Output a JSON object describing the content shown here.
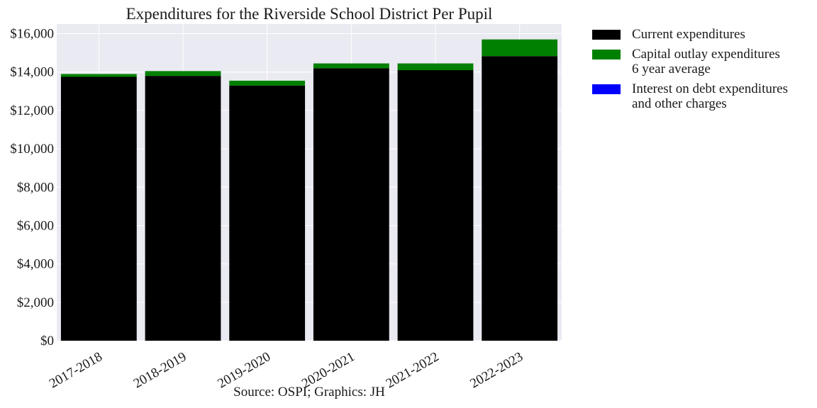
{
  "chart_data": {
    "type": "bar",
    "stacked": true,
    "title": "Expenditures for the Riverside School District Per Pupil",
    "xlabel": "Source: OSPI; Graphics: JH",
    "ylabel": "",
    "categories": [
      "2017-2018",
      "2018-2019",
      "2019-2020",
      "2020-2021",
      "2021-2022",
      "2022-2023"
    ],
    "series": [
      {
        "name": "Current expenditures",
        "color": "#000000",
        "values": [
          13750,
          13800,
          13300,
          14200,
          14100,
          14830
        ]
      },
      {
        "name": "Capital outlay expenditures\n6 year average",
        "color": "#008000",
        "values": [
          150,
          250,
          250,
          250,
          350,
          870
        ]
      },
      {
        "name": "Interest on debt expenditures\nand other charges",
        "color": "#0000ff",
        "values": [
          0,
          0,
          0,
          0,
          0,
          0
        ]
      }
    ],
    "ylim": [
      0,
      16500
    ],
    "yticks": [
      0,
      2000,
      4000,
      6000,
      8000,
      10000,
      12000,
      14000,
      16000
    ],
    "ytick_labels": [
      "$0",
      "$2,000",
      "$4,000",
      "$6,000",
      "$8,000",
      "$10,000",
      "$12,000",
      "$14,000",
      "$16,000"
    ],
    "grid": true,
    "legend_position": "outside-right"
  },
  "colors": {
    "plot_background": "#eaeaf2",
    "grid": "#ffffff"
  }
}
